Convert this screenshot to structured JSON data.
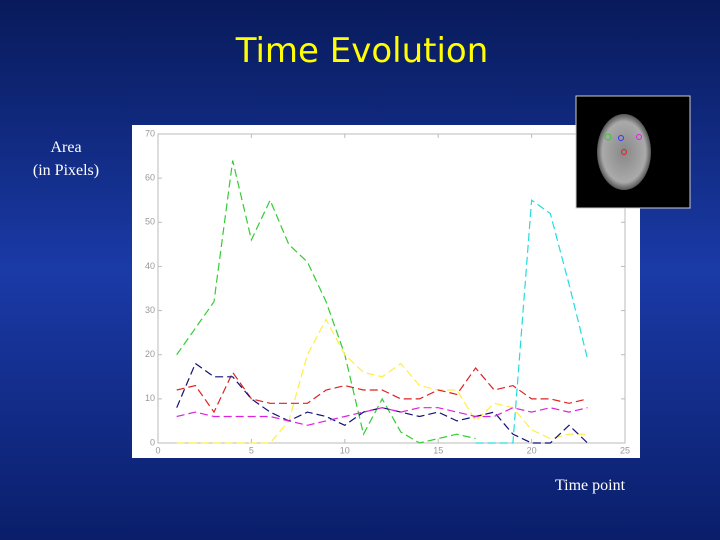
{
  "chart_data": {
    "type": "line",
    "title": "Time Evolution",
    "y_label": [
      "Area",
      "(in Pixels)"
    ],
    "x_label": "Time point",
    "x": [
      1,
      2,
      3,
      4,
      5,
      6,
      7,
      8,
      9,
      10,
      11,
      12,
      13,
      14,
      15,
      16,
      17,
      18,
      19,
      20,
      21,
      22,
      23
    ],
    "xlim": [
      0,
      25
    ],
    "xticks": [
      0,
      5,
      10,
      15,
      20,
      25
    ],
    "ylim": [
      0,
      70
    ],
    "yticks": [
      0,
      10,
      20,
      30,
      40,
      50,
      60,
      70
    ],
    "line_style": "dashed",
    "series": [
      {
        "color": "#33cc33",
        "values": [
          20,
          26,
          32,
          64,
          46,
          55,
          45,
          41,
          32,
          20,
          2,
          10,
          2.5,
          0,
          1,
          2,
          1,
          null,
          null,
          null,
          null,
          null,
          null
        ]
      },
      {
        "color": "#22dddd",
        "values": [
          null,
          null,
          null,
          null,
          null,
          null,
          null,
          null,
          null,
          null,
          null,
          null,
          null,
          null,
          null,
          null,
          0,
          0,
          0,
          55,
          52,
          36,
          19
        ]
      },
      {
        "color": "#ffee44",
        "values": [
          0,
          0,
          0,
          0,
          0,
          0,
          5,
          20,
          28,
          20,
          16,
          15,
          18,
          13,
          12,
          12,
          5,
          9,
          8,
          3,
          1,
          2,
          2
        ]
      },
      {
        "color": "#dd2222",
        "values": [
          12,
          13,
          7,
          16,
          10,
          9,
          9,
          9,
          12,
          13,
          12,
          12,
          10,
          10,
          12,
          11,
          17,
          12,
          13,
          10,
          10,
          9,
          10
        ]
      },
      {
        "color": "#111177",
        "values": [
          8,
          18,
          15,
          15,
          10,
          7,
          5,
          7,
          6,
          4,
          7,
          8,
          7,
          6,
          7,
          5,
          6,
          7,
          2,
          0,
          0,
          4,
          0
        ]
      },
      {
        "color": "#dd22dd",
        "values": [
          6,
          7,
          6,
          6,
          6,
          6,
          5,
          4,
          5,
          6,
          7,
          8,
          7,
          8,
          8,
          7,
          6,
          6,
          8,
          7,
          8,
          7,
          8
        ]
      }
    ]
  }
}
